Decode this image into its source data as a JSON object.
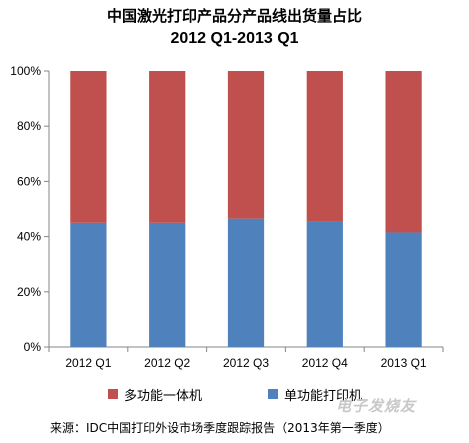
{
  "chart_data": {
    "type": "bar",
    "stacked": true,
    "title": "中国激光打印产品分产品线出货量占比",
    "subtitle": "2012 Q1-2013 Q1",
    "categories": [
      "2012 Q1",
      "2012 Q2",
      "2012 Q3",
      "2012 Q4",
      "2013 Q1"
    ],
    "series": [
      {
        "name": "单功能打印机",
        "color": "#4f81bd",
        "values": [
          45,
          45,
          46.5,
          45.5,
          41.5
        ]
      },
      {
        "name": "多功能一体机",
        "color": "#c0504d",
        "values": [
          55,
          55,
          53.5,
          54.5,
          58.5
        ]
      }
    ],
    "ylim": [
      0,
      100
    ],
    "yticks": [
      "0%",
      "20%",
      "40%",
      "60%",
      "80%",
      "100%"
    ],
    "grid": false,
    "legend_position": "bottom",
    "xlabel": "",
    "ylabel": ""
  },
  "source_text": "来源：IDC中国打印外设市场季度跟踪报告（2013年第一季度）",
  "watermark_text": "电子发烧友"
}
